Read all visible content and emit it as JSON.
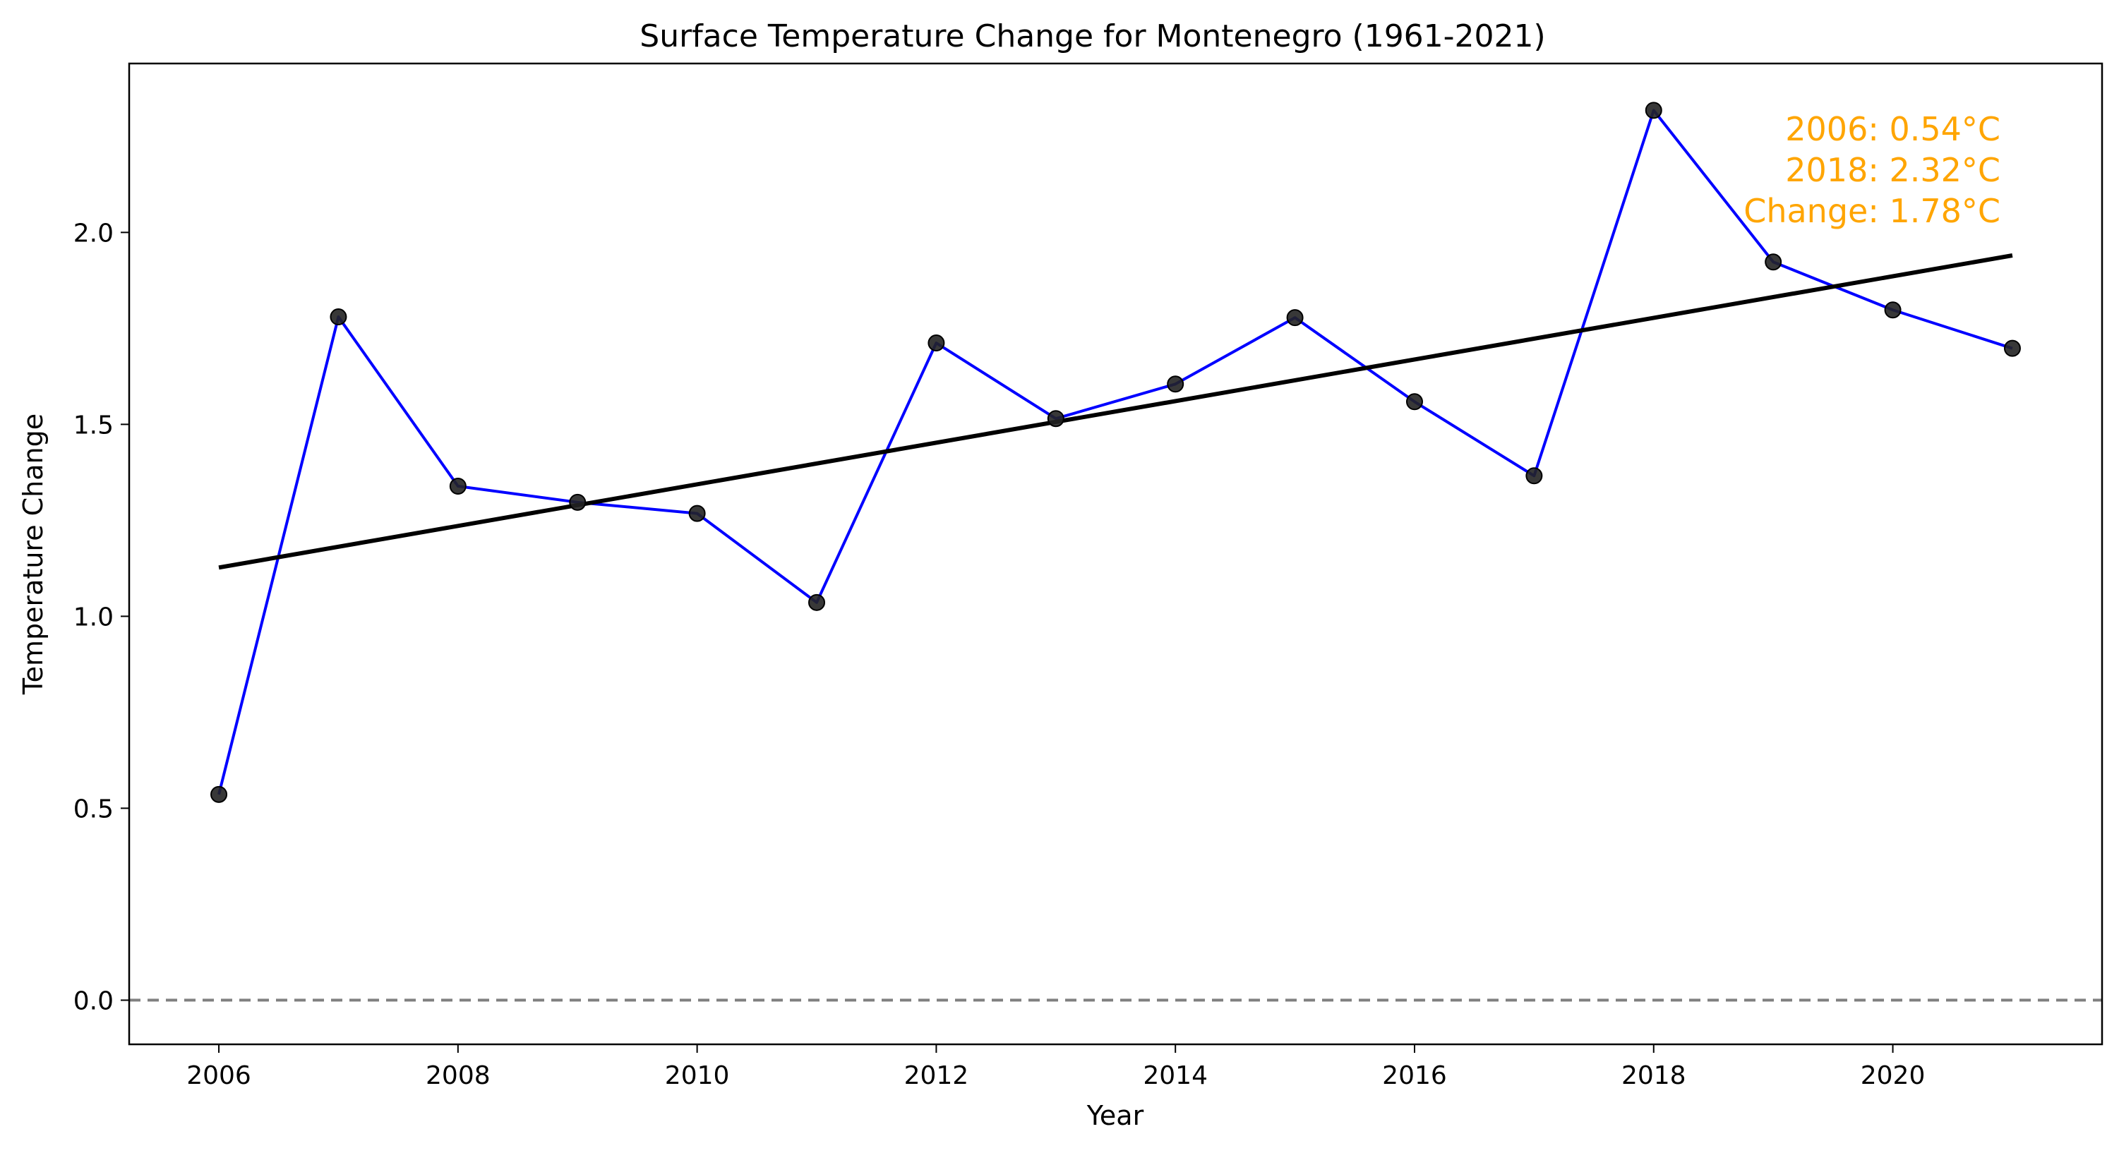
{
  "chart_data": {
    "type": "line",
    "title": "Surface Temperature Change for Montenegro (1961-2021)",
    "xlabel": "Year",
    "ylabel": "Temperature Change",
    "x": [
      2006,
      2007,
      2008,
      2009,
      2010,
      2011,
      2012,
      2013,
      2014,
      2015,
      2016,
      2017,
      2018,
      2019,
      2020,
      2021
    ],
    "series": [
      {
        "values": [
          0.536,
          1.78,
          1.339,
          1.297,
          1.268,
          1.036,
          1.712,
          1.515,
          1.605,
          1.778,
          1.559,
          1.366,
          2.318,
          1.923,
          1.798,
          1.698
        ],
        "line_color": "#0000ff",
        "marker_color": "#222222"
      }
    ],
    "trend_line": {
      "x": [
        2006,
        2021
      ],
      "y": [
        1.127,
        1.94
      ],
      "color": "#000000"
    },
    "reference_line": {
      "y": 0.0,
      "style": "dashed",
      "color": "#808080"
    },
    "xlim": [
      2005.25,
      2021.75
    ],
    "ylim": [
      -0.115,
      2.44
    ],
    "xticks": [
      2006,
      2008,
      2010,
      2012,
      2014,
      2016,
      2018,
      2020
    ],
    "yticks": [
      0.0,
      0.5,
      1.0,
      1.5,
      2.0
    ],
    "ytick_labels": [
      "0.0",
      "0.5",
      "1.0",
      "1.5",
      "2.0"
    ],
    "annotation": {
      "lines": [
        "2006: 0.54°C",
        "2018: 2.32°C",
        "Change: 1.78°C"
      ],
      "color": "#ffa500",
      "placement": "top-right"
    },
    "grid": false,
    "legend": false
  }
}
